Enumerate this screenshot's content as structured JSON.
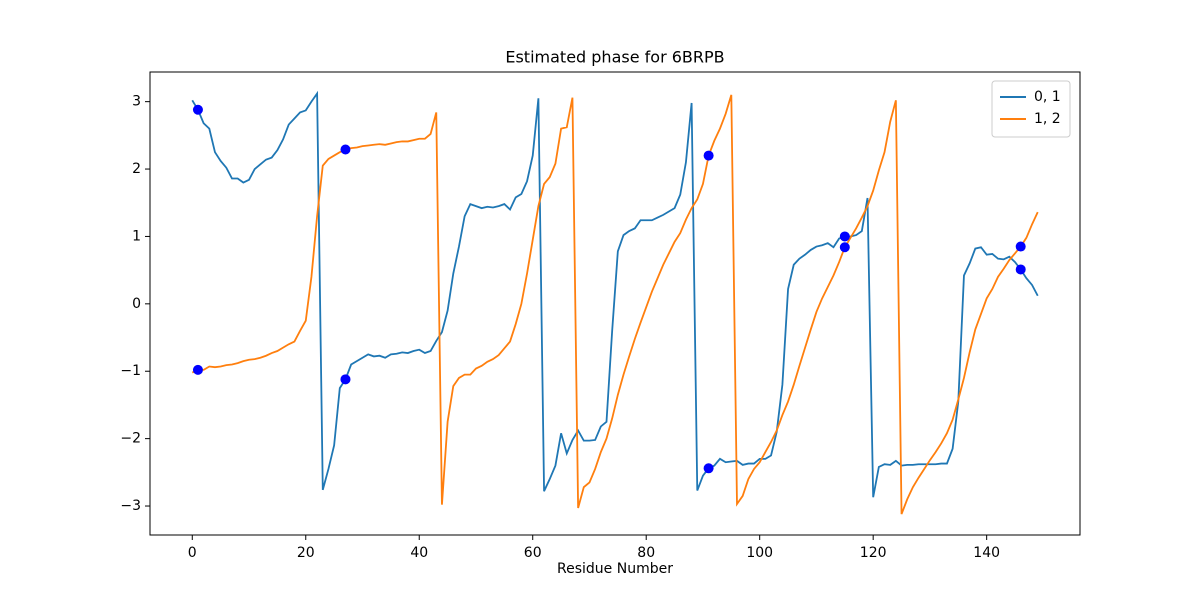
{
  "chart_data": {
    "type": "line",
    "title": "Estimated phase for 6BRPB",
    "x_label": "Residue Number",
    "x": [
      0,
      1,
      2,
      3,
      4,
      5,
      6,
      7,
      8,
      9,
      10,
      11,
      12,
      13,
      14,
      15,
      16,
      17,
      18,
      19,
      20,
      21,
      22,
      23,
      24,
      25,
      26,
      27,
      28,
      29,
      30,
      31,
      32,
      33,
      34,
      35,
      36,
      37,
      38,
      39,
      40,
      41,
      42,
      43,
      44,
      45,
      46,
      47,
      48,
      49,
      50,
      51,
      52,
      53,
      54,
      55,
      56,
      57,
      58,
      59,
      60,
      61,
      62,
      63,
      64,
      65,
      66,
      67,
      68,
      69,
      70,
      71,
      72,
      73,
      74,
      75,
      76,
      77,
      78,
      79,
      80,
      81,
      82,
      83,
      84,
      85,
      86,
      87,
      88,
      89,
      90,
      91,
      92,
      93,
      94,
      95,
      96,
      97,
      98,
      99,
      100,
      101,
      102,
      103,
      104,
      105,
      106,
      107,
      108,
      109,
      110,
      111,
      112,
      113,
      114,
      115,
      116,
      117,
      118,
      119,
      120,
      121,
      122,
      123,
      124,
      125,
      126,
      127,
      128,
      129,
      130,
      131,
      132,
      133,
      134,
      135,
      136,
      137,
      138,
      139,
      140,
      141,
      142,
      143,
      144,
      145,
      146,
      147,
      148,
      149
    ],
    "series": [
      {
        "name": "0, 1",
        "color": "#1f77b4",
        "values": [
          3.02,
          2.88,
          2.68,
          2.6,
          2.25,
          2.12,
          2.02,
          1.86,
          1.86,
          1.8,
          1.84,
          2.0,
          2.07,
          2.14,
          2.17,
          2.28,
          2.44,
          2.66,
          2.75,
          2.84,
          2.87,
          3.0,
          3.12,
          -2.76,
          -2.45,
          -2.1,
          -1.25,
          -1.12,
          -0.9,
          -0.85,
          -0.8,
          -0.75,
          -0.78,
          -0.77,
          -0.8,
          -0.75,
          -0.74,
          -0.72,
          -0.73,
          -0.7,
          -0.68,
          -0.73,
          -0.7,
          -0.55,
          -0.42,
          -0.1,
          0.45,
          0.85,
          1.3,
          1.48,
          1.45,
          1.42,
          1.44,
          1.43,
          1.45,
          1.48,
          1.4,
          1.58,
          1.63,
          1.82,
          2.2,
          3.05,
          -2.78,
          -2.6,
          -2.4,
          -1.92,
          -2.22,
          -2.02,
          -1.88,
          -2.03,
          -2.03,
          -2.02,
          -1.82,
          -1.75,
          -0.4,
          0.78,
          1.02,
          1.08,
          1.12,
          1.24,
          1.24,
          1.24,
          1.28,
          1.32,
          1.37,
          1.42,
          1.62,
          2.1,
          2.98,
          -2.77,
          -2.55,
          -2.44,
          -2.4,
          -2.3,
          -2.35,
          -2.34,
          -2.33,
          -2.39,
          -2.37,
          -2.37,
          -2.3,
          -2.3,
          -2.25,
          -1.9,
          -1.2,
          0.22,
          0.58,
          0.67,
          0.73,
          0.8,
          0.85,
          0.87,
          0.9,
          0.84,
          0.97,
          1.0,
          1.0,
          1.02,
          1.08,
          1.57,
          -2.87,
          -2.42,
          -2.38,
          -2.39,
          -2.33,
          -2.4,
          -2.39,
          -2.39,
          -2.38,
          -2.38,
          -2.38,
          -2.38,
          -2.37,
          -2.37,
          -2.15,
          -1.45,
          0.42,
          0.6,
          0.82,
          0.84,
          0.73,
          0.74,
          0.67,
          0.66,
          0.7,
          0.62,
          0.51,
          0.38,
          0.28,
          0.12
        ]
      },
      {
        "name": "1, 2",
        "color": "#ff7f0e",
        "values": [
          -1.02,
          -0.98,
          -0.98,
          -0.93,
          -0.94,
          -0.93,
          -0.91,
          -0.9,
          -0.88,
          -0.85,
          -0.83,
          -0.82,
          -0.8,
          -0.77,
          -0.73,
          -0.7,
          -0.65,
          -0.6,
          -0.56,
          -0.4,
          -0.25,
          0.4,
          1.3,
          2.05,
          2.15,
          2.2,
          2.25,
          2.29,
          2.31,
          2.32,
          2.34,
          2.35,
          2.36,
          2.37,
          2.36,
          2.38,
          2.4,
          2.41,
          2.41,
          2.43,
          2.45,
          2.45,
          2.52,
          2.84,
          -2.98,
          -1.75,
          -1.22,
          -1.1,
          -1.05,
          -1.05,
          -0.96,
          -0.92,
          -0.86,
          -0.82,
          -0.76,
          -0.66,
          -0.56,
          -0.3,
          0.0,
          0.45,
          0.95,
          1.45,
          1.78,
          1.88,
          2.08,
          2.6,
          2.62,
          3.06,
          -3.03,
          -2.72,
          -2.65,
          -2.45,
          -2.2,
          -2.0,
          -1.7,
          -1.35,
          -1.05,
          -0.78,
          -0.52,
          -0.28,
          -0.05,
          0.18,
          0.38,
          0.58,
          0.75,
          0.92,
          1.05,
          1.25,
          1.42,
          1.55,
          1.78,
          2.2,
          2.42,
          2.6,
          2.82,
          3.1,
          -2.97,
          -2.85,
          -2.6,
          -2.45,
          -2.35,
          -2.2,
          -2.05,
          -1.88,
          -1.65,
          -1.45,
          -1.2,
          -0.92,
          -0.65,
          -0.38,
          -0.12,
          0.08,
          0.25,
          0.42,
          0.62,
          0.84,
          0.98,
          1.12,
          1.28,
          1.45,
          1.68,
          1.98,
          2.25,
          2.7,
          3.02,
          -3.12,
          -2.9,
          -2.72,
          -2.58,
          -2.45,
          -2.32,
          -2.2,
          -2.07,
          -1.92,
          -1.72,
          -1.42,
          -1.1,
          -0.72,
          -0.38,
          -0.15,
          0.08,
          0.22,
          0.4,
          0.52,
          0.65,
          0.75,
          0.85,
          0.98,
          1.18,
          1.36
        ]
      }
    ],
    "points": {
      "color": "blue",
      "x": [
        1,
        1,
        27,
        27,
        91,
        91,
        115,
        115,
        146,
        146
      ],
      "y": [
        2.88,
        -0.98,
        2.29,
        -1.12,
        2.2,
        -2.44,
        1.0,
        0.84,
        0.85,
        0.51
      ]
    },
    "xlim": [
      -7.45,
      156.45
    ],
    "ylim": [
      -3.43,
      3.44
    ],
    "xticks": [
      0,
      20,
      40,
      60,
      80,
      100,
      120,
      140
    ],
    "yticks": [
      {
        "value": -3,
        "label": "−3"
      },
      {
        "value": -2,
        "label": "−2"
      },
      {
        "value": -1,
        "label": "−1"
      },
      0,
      1,
      2,
      3
    ],
    "legend": "upper right"
  }
}
